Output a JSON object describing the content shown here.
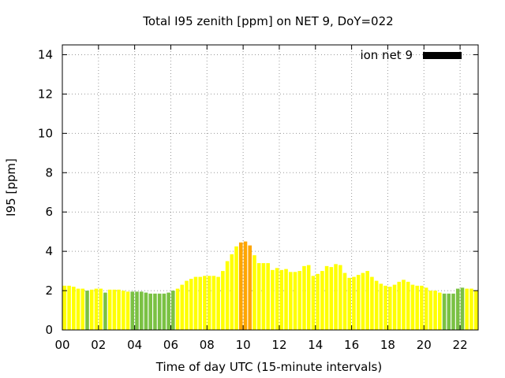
{
  "chart_data": {
    "type": "bar",
    "title": "Total I95 zenith [ppm] on NET 9, DoY=022",
    "xlabel": "Time of day UTC (15-minute intervals)",
    "ylabel": "I95 [ppm]",
    "xlim": [
      0,
      23
    ],
    "ylim": [
      0,
      14.5
    ],
    "yticks": [
      0,
      2,
      4,
      6,
      8,
      10,
      12,
      14
    ],
    "xticks": [
      0,
      2,
      4,
      6,
      8,
      10,
      12,
      14,
      16,
      18,
      20,
      22
    ],
    "xtick_labels": [
      "00",
      "02",
      "04",
      "06",
      "08",
      "10",
      "12",
      "14",
      "16",
      "18",
      "20",
      "22"
    ],
    "grid": true,
    "legend": {
      "label": "ion net 9",
      "position": "top-right"
    },
    "colors": {
      "green": "#7ac143",
      "yellow": "#ffff00",
      "orange": "#ffa500"
    },
    "bar_width_hours": 0.2,
    "x": [
      0.0,
      0.25,
      0.5,
      0.75,
      1.0,
      1.25,
      1.5,
      1.75,
      2.0,
      2.25,
      2.5,
      2.75,
      3.0,
      3.25,
      3.5,
      3.75,
      4.0,
      4.25,
      4.5,
      4.75,
      5.0,
      5.25,
      5.5,
      5.75,
      6.0,
      6.25,
      6.5,
      6.75,
      7.0,
      7.25,
      7.5,
      7.75,
      8.0,
      8.25,
      8.5,
      8.75,
      9.0,
      9.25,
      9.5,
      9.75,
      10.0,
      10.25,
      10.5,
      10.75,
      11.0,
      11.25,
      11.5,
      11.75,
      12.0,
      12.25,
      12.5,
      12.75,
      13.0,
      13.25,
      13.5,
      13.75,
      14.0,
      14.25,
      14.5,
      14.75,
      15.0,
      15.25,
      15.5,
      15.75,
      16.0,
      16.25,
      16.5,
      16.75,
      17.0,
      17.25,
      17.5,
      17.75,
      18.0,
      18.25,
      18.5,
      18.75,
      19.0,
      19.25,
      19.5,
      19.75,
      20.0,
      20.25,
      20.5,
      20.75,
      21.0,
      21.25,
      21.5,
      21.75,
      22.0,
      22.25,
      22.5,
      22.75
    ],
    "values": [
      2.25,
      2.25,
      2.2,
      2.1,
      2.1,
      2.0,
      2.05,
      2.1,
      2.1,
      1.9,
      2.05,
      2.05,
      2.05,
      2.0,
      1.95,
      1.95,
      1.95,
      1.95,
      1.9,
      1.85,
      1.85,
      1.85,
      1.85,
      1.9,
      2.0,
      2.1,
      2.3,
      2.5,
      2.6,
      2.7,
      2.7,
      2.75,
      2.75,
      2.75,
      2.7,
      3.0,
      3.5,
      3.85,
      4.25,
      4.45,
      4.5,
      4.3,
      3.8,
      3.4,
      3.4,
      3.4,
      3.05,
      3.15,
      3.05,
      3.1,
      2.95,
      2.95,
      3.0,
      3.25,
      3.3,
      2.75,
      2.85,
      3.0,
      3.25,
      3.2,
      3.35,
      3.3,
      2.9,
      2.65,
      2.7,
      2.8,
      2.9,
      3.0,
      2.7,
      2.5,
      2.35,
      2.25,
      2.2,
      2.3,
      2.45,
      2.55,
      2.45,
      2.3,
      2.25,
      2.25,
      2.15,
      2.0,
      2.0,
      1.9,
      1.85,
      1.85,
      1.85,
      2.1,
      2.15,
      2.1,
      2.1,
      2.0
    ],
    "bar_colors": [
      "yellow",
      "yellow",
      "yellow",
      "yellow",
      "yellow",
      "green",
      "yellow",
      "yellow",
      "yellow",
      "green",
      "yellow",
      "yellow",
      "yellow",
      "yellow",
      "yellow",
      "green",
      "green",
      "green",
      "green",
      "green",
      "green",
      "green",
      "green",
      "green",
      "green",
      "yellow",
      "yellow",
      "yellow",
      "yellow",
      "yellow",
      "yellow",
      "yellow",
      "yellow",
      "yellow",
      "yellow",
      "yellow",
      "yellow",
      "yellow",
      "yellow",
      "orange",
      "orange",
      "orange",
      "yellow",
      "yellow",
      "yellow",
      "yellow",
      "yellow",
      "yellow",
      "yellow",
      "yellow",
      "yellow",
      "yellow",
      "yellow",
      "yellow",
      "yellow",
      "yellow",
      "yellow",
      "yellow",
      "yellow",
      "yellow",
      "yellow",
      "yellow",
      "yellow",
      "yellow",
      "yellow",
      "yellow",
      "yellow",
      "yellow",
      "yellow",
      "yellow",
      "yellow",
      "yellow",
      "yellow",
      "yellow",
      "yellow",
      "yellow",
      "yellow",
      "yellow",
      "yellow",
      "yellow",
      "yellow",
      "yellow",
      "yellow",
      "yellow",
      "green",
      "green",
      "green",
      "green",
      "green",
      "yellow",
      "yellow",
      "yellow"
    ]
  }
}
